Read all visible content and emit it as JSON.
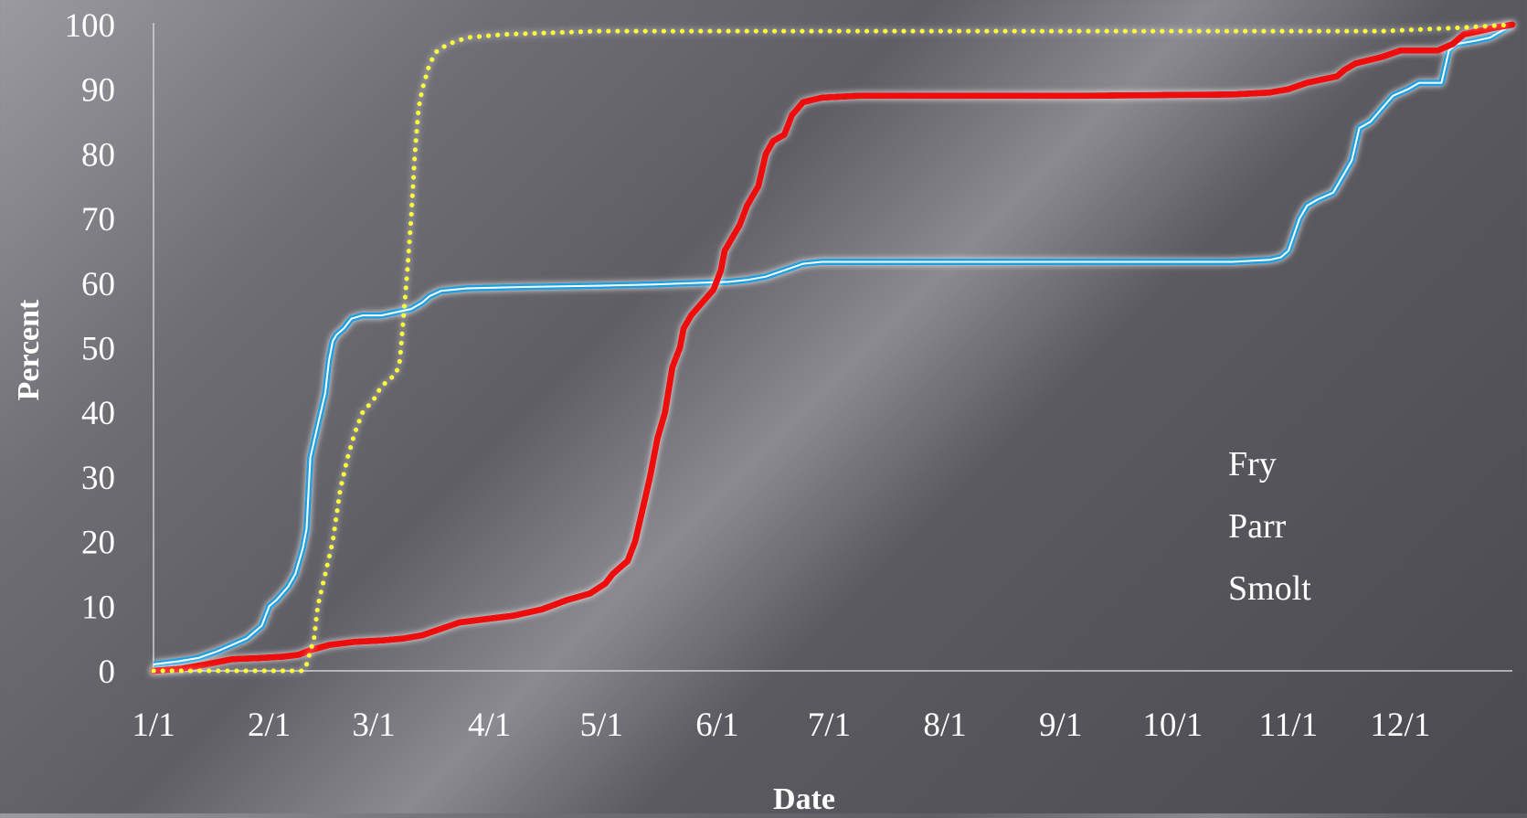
{
  "chart_data": {
    "type": "line",
    "title": "",
    "xlabel": "Date",
    "ylabel": "Percent",
    "ylim": [
      0,
      100
    ],
    "xlim_day_of_year": [
      1,
      365
    ],
    "x_unit": "day of year",
    "y_ticks": [
      "0",
      "10",
      "20",
      "30",
      "40",
      "50",
      "60",
      "70",
      "80",
      "90",
      "100"
    ],
    "x_ticks": [
      {
        "label": "1/1",
        "day": 1
      },
      {
        "label": "2/1",
        "day": 32
      },
      {
        "label": "3/1",
        "day": 60
      },
      {
        "label": "4/1",
        "day": 91
      },
      {
        "label": "5/1",
        "day": 121
      },
      {
        "label": "6/1",
        "day": 152
      },
      {
        "label": "7/1",
        "day": 182
      },
      {
        "label": "8/1",
        "day": 213
      },
      {
        "label": "9/1",
        "day": 244
      },
      {
        "label": "10/1",
        "day": 274
      },
      {
        "label": "11/1",
        "day": 305
      },
      {
        "label": "12/1",
        "day": 335
      }
    ],
    "grid": false,
    "legend_position": "right",
    "series": [
      {
        "name": "Fry",
        "color": "#ffff33",
        "style": "dotted",
        "points": [
          [
            1,
            0
          ],
          [
            15,
            0
          ],
          [
            25,
            0
          ],
          [
            36,
            0
          ],
          [
            41,
            0
          ],
          [
            42,
            1
          ],
          [
            44,
            5
          ],
          [
            45,
            10
          ],
          [
            47,
            15
          ],
          [
            49,
            20
          ],
          [
            51,
            28
          ],
          [
            53,
            33
          ],
          [
            55,
            37
          ],
          [
            57,
            40
          ],
          [
            60,
            42
          ],
          [
            62,
            44
          ],
          [
            64,
            45
          ],
          [
            66,
            46
          ],
          [
            67,
            48
          ],
          [
            68,
            55
          ],
          [
            69,
            62
          ],
          [
            70,
            70
          ],
          [
            71,
            80
          ],
          [
            72,
            87
          ],
          [
            73,
            90
          ],
          [
            75,
            94
          ],
          [
            77,
            96
          ],
          [
            80,
            97
          ],
          [
            85,
            98
          ],
          [
            95,
            98.5
          ],
          [
            120,
            99
          ],
          [
            200,
            99
          ],
          [
            300,
            99
          ],
          [
            330,
            99
          ],
          [
            350,
            99.5
          ],
          [
            365,
            100
          ]
        ]
      },
      {
        "name": "Parr",
        "color": "#1fa0e0",
        "style": "double",
        "points": [
          [
            1,
            1
          ],
          [
            8,
            1.5
          ],
          [
            13,
            2
          ],
          [
            18,
            3
          ],
          [
            22,
            4
          ],
          [
            26,
            5
          ],
          [
            30,
            7
          ],
          [
            32,
            10
          ],
          [
            34,
            11
          ],
          [
            37,
            13
          ],
          [
            39,
            15
          ],
          [
            41,
            19
          ],
          [
            42,
            22
          ],
          [
            43,
            33
          ],
          [
            45,
            38
          ],
          [
            47,
            43
          ],
          [
            48,
            48
          ],
          [
            49,
            51
          ],
          [
            50,
            52
          ],
          [
            52,
            53
          ],
          [
            54,
            54.5
          ],
          [
            57,
            55
          ],
          [
            62,
            55
          ],
          [
            66,
            55.5
          ],
          [
            70,
            56
          ],
          [
            73,
            57
          ],
          [
            75,
            58
          ],
          [
            78,
            58.8
          ],
          [
            85,
            59.2
          ],
          [
            100,
            59.4
          ],
          [
            120,
            59.6
          ],
          [
            135,
            59.8
          ],
          [
            145,
            60
          ],
          [
            155,
            60.2
          ],
          [
            160,
            60.5
          ],
          [
            165,
            61
          ],
          [
            170,
            62
          ],
          [
            175,
            63
          ],
          [
            180,
            63.3
          ],
          [
            200,
            63.3
          ],
          [
            250,
            63.3
          ],
          [
            290,
            63.3
          ],
          [
            300,
            63.6
          ],
          [
            303,
            64
          ],
          [
            305,
            65
          ],
          [
            308,
            70
          ],
          [
            310,
            72
          ],
          [
            313,
            73
          ],
          [
            317,
            74
          ],
          [
            320,
            77
          ],
          [
            322,
            79
          ],
          [
            324,
            84
          ],
          [
            327,
            85
          ],
          [
            330,
            87
          ],
          [
            333,
            89
          ],
          [
            337,
            90
          ],
          [
            340,
            91
          ],
          [
            346,
            91
          ],
          [
            348,
            96
          ],
          [
            350,
            97
          ],
          [
            355,
            97.5
          ],
          [
            359,
            98
          ],
          [
            362,
            99
          ],
          [
            365,
            100
          ]
        ]
      },
      {
        "name": "Smolt",
        "color": "#ee1111",
        "style": "solid",
        "points": [
          [
            1,
            0
          ],
          [
            8,
            0.3
          ],
          [
            15,
            1
          ],
          [
            22,
            1.8
          ],
          [
            30,
            2
          ],
          [
            36,
            2.2
          ],
          [
            40,
            2.5
          ],
          [
            43,
            3.2
          ],
          [
            48,
            4
          ],
          [
            55,
            4.5
          ],
          [
            62,
            4.7
          ],
          [
            68,
            5
          ],
          [
            73,
            5.5
          ],
          [
            78,
            6.5
          ],
          [
            83,
            7.5
          ],
          [
            90,
            8
          ],
          [
            97,
            8.5
          ],
          [
            105,
            9.5
          ],
          [
            112,
            11
          ],
          [
            118,
            12
          ],
          [
            122,
            13.5
          ],
          [
            124,
            15
          ],
          [
            126,
            16
          ],
          [
            128,
            17
          ],
          [
            130,
            20
          ],
          [
            132,
            25
          ],
          [
            134,
            30
          ],
          [
            136,
            36
          ],
          [
            138,
            40
          ],
          [
            140,
            47
          ],
          [
            142,
            50
          ],
          [
            143,
            53
          ],
          [
            145,
            55
          ],
          [
            148,
            57
          ],
          [
            151,
            59
          ],
          [
            153,
            62
          ],
          [
            154,
            65
          ],
          [
            156,
            67
          ],
          [
            158,
            69
          ],
          [
            160,
            72
          ],
          [
            163,
            75
          ],
          [
            165,
            80
          ],
          [
            167,
            82
          ],
          [
            170,
            83
          ],
          [
            172,
            86
          ],
          [
            175,
            88
          ],
          [
            180,
            88.7
          ],
          [
            190,
            89
          ],
          [
            250,
            89
          ],
          [
            290,
            89.2
          ],
          [
            300,
            89.5
          ],
          [
            305,
            90
          ],
          [
            310,
            91
          ],
          [
            318,
            92
          ],
          [
            320,
            93
          ],
          [
            323,
            94
          ],
          [
            330,
            95
          ],
          [
            335,
            96
          ],
          [
            345,
            96
          ],
          [
            349,
            97
          ],
          [
            352,
            98.5
          ],
          [
            356,
            99
          ],
          [
            360,
            99.5
          ],
          [
            365,
            100
          ]
        ]
      }
    ]
  }
}
